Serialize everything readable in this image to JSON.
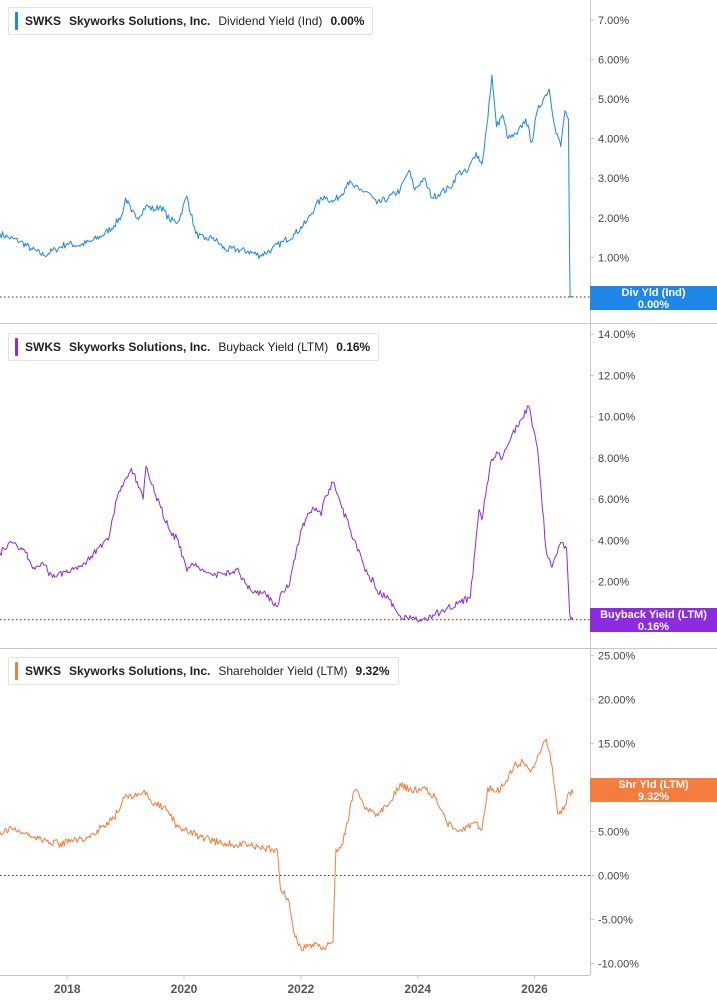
{
  "chart_data": [
    {
      "type": "line",
      "ticker": "SWKS",
      "company": "Skyworks Solutions, Inc.",
      "metric": "Dividend Yield (Ind)",
      "current_value": "0.00%",
      "tag_title": "Div Yld (Ind)",
      "tag_value": "0.00%",
      "color": "#1f87e8",
      "ylim": [
        0,
        7.5
      ],
      "y_ticks": [
        0,
        1,
        2,
        3,
        4,
        5,
        6,
        7
      ],
      "y_tick_labels": [
        "0.00%",
        "1.00%",
        "2.00%",
        "3.00%",
        "4.00%",
        "5.00%",
        "6.00%",
        "7.00%"
      ],
      "reference_line": 0,
      "x": [
        2016.85,
        2017.0,
        2017.2,
        2017.4,
        2017.6,
        2017.8,
        2018.0,
        2018.2,
        2018.4,
        2018.6,
        2018.8,
        2018.95,
        2019.0,
        2019.1,
        2019.2,
        2019.35,
        2019.5,
        2019.6,
        2019.75,
        2019.9,
        2020.05,
        2020.2,
        2020.35,
        2020.5,
        2020.7,
        2020.9,
        2021.1,
        2021.3,
        2021.5,
        2021.7,
        2021.9,
        2022.1,
        2022.25,
        2022.4,
        2022.55,
        2022.7,
        2022.8,
        2022.9,
        2023.0,
        2023.15,
        2023.3,
        2023.5,
        2023.7,
        2023.85,
        2023.95,
        2024.1,
        2024.25,
        2024.4,
        2024.55,
        2024.7,
        2024.85,
        2025.0,
        2025.1,
        2025.2,
        2025.27,
        2025.35,
        2025.45,
        2025.55,
        2025.7,
        2025.85,
        2025.95,
        2026.05,
        2026.15,
        2026.25,
        2026.35,
        2026.45,
        2026.52,
        2026.58,
        2026.6,
        2026.61,
        2026.66
      ],
      "values": [
        1.6,
        1.5,
        1.4,
        1.2,
        1.05,
        1.2,
        1.35,
        1.3,
        1.4,
        1.55,
        1.8,
        2.1,
        2.5,
        2.15,
        2.0,
        2.3,
        2.2,
        2.3,
        1.95,
        1.9,
        2.55,
        1.6,
        1.45,
        1.5,
        1.2,
        1.2,
        1.15,
        1.05,
        1.2,
        1.4,
        1.6,
        1.9,
        2.3,
        2.55,
        2.4,
        2.6,
        2.9,
        2.8,
        2.7,
        2.65,
        2.35,
        2.5,
        2.7,
        3.2,
        2.7,
        3.0,
        2.5,
        2.65,
        2.75,
        3.15,
        3.15,
        3.65,
        3.35,
        4.5,
        5.6,
        4.3,
        4.6,
        4.0,
        4.1,
        4.5,
        3.9,
        4.7,
        5.0,
        5.25,
        4.3,
        3.8,
        4.7,
        4.5,
        1.0,
        0.0,
        0.0
      ]
    },
    {
      "type": "line",
      "ticker": "SWKS",
      "company": "Skyworks Solutions, Inc.",
      "metric": "Buyback Yield (LTM)",
      "current_value": "0.16%",
      "tag_title": "Buyback Yield (LTM)",
      "tag_value": "0.16%",
      "color": "#8c2be2",
      "ylim": [
        0,
        14.3
      ],
      "y_ticks": [
        2,
        4,
        6,
        8,
        10,
        12,
        14
      ],
      "y_tick_labels": [
        "2.00%",
        "4.00%",
        "6.00%",
        "8.00%",
        "10.00%",
        "12.00%",
        "14.00%"
      ],
      "reference_line": 0.16,
      "x": [
        2016.85,
        2017.05,
        2017.25,
        2017.45,
        2017.6,
        2017.75,
        2017.95,
        2018.15,
        2018.3,
        2018.45,
        2018.55,
        2018.7,
        2018.85,
        2018.95,
        2019.1,
        2019.3,
        2019.35,
        2019.45,
        2019.6,
        2019.75,
        2019.9,
        2020.05,
        2020.2,
        2020.3,
        2020.5,
        2020.7,
        2020.9,
        2021.05,
        2021.2,
        2021.4,
        2021.6,
        2021.65,
        2021.8,
        2022.0,
        2022.2,
        2022.35,
        2022.4,
        2022.55,
        2022.7,
        2022.85,
        2022.95,
        2023.1,
        2023.25,
        2023.3,
        2023.5,
        2023.7,
        2023.85,
        2023.95,
        2024.1,
        2024.3,
        2024.5,
        2024.7,
        2024.9,
        2025.05,
        2025.1,
        2025.25,
        2025.35,
        2025.45,
        2025.6,
        2025.75,
        2025.9,
        2026.05,
        2026.2,
        2026.3,
        2026.35,
        2026.45,
        2026.55,
        2026.6,
        2026.62,
        2026.66
      ],
      "values": [
        3.4,
        3.9,
        3.6,
        2.6,
        2.8,
        2.2,
        2.5,
        2.7,
        2.9,
        3.4,
        3.7,
        4.0,
        6.0,
        6.6,
        7.5,
        6.0,
        7.6,
        6.7,
        5.6,
        4.5,
        4.0,
        2.5,
        2.9,
        2.6,
        2.3,
        2.4,
        2.6,
        1.9,
        1.5,
        1.4,
        0.8,
        1.4,
        1.8,
        4.5,
        5.6,
        5.2,
        6.0,
        6.8,
        5.6,
        4.5,
        3.8,
        2.5,
        2.0,
        1.6,
        1.2,
        0.35,
        0.2,
        0.16,
        0.2,
        0.4,
        0.7,
        1.0,
        1.2,
        5.5,
        5.0,
        7.8,
        8.3,
        8.0,
        9.0,
        9.8,
        10.5,
        8.5,
        3.5,
        2.7,
        3.2,
        3.9,
        3.6,
        0.5,
        0.16,
        0.16
      ]
    },
    {
      "type": "line",
      "ticker": "SWKS",
      "company": "Skyworks Solutions, Inc.",
      "metric": "Shareholder Yield (LTM)",
      "current_value": "9.32%",
      "tag_title": "Shr Yld (LTM)",
      "tag_value": "9.32%",
      "color": "#f47c3c",
      "ylim": [
        -10.5,
        25.5
      ],
      "y_ticks": [
        -10,
        -5,
        0,
        5,
        10,
        15,
        20,
        25
      ],
      "y_tick_labels": [
        "-10.00%",
        "-5.00%",
        "0.00%",
        "5.00%",
        "10.00%",
        "15.00%",
        "20.00%",
        "25.00%"
      ],
      "reference_line": 0,
      "x": [
        2016.85,
        2017.05,
        2017.25,
        2017.45,
        2017.65,
        2017.85,
        2018.05,
        2018.25,
        2018.45,
        2018.6,
        2018.8,
        2019.0,
        2019.15,
        2019.3,
        2019.5,
        2019.7,
        2019.9,
        2020.1,
        2020.3,
        2020.5,
        2020.7,
        2020.9,
        2021.1,
        2021.3,
        2021.5,
        2021.6,
        2021.65,
        2021.8,
        2021.9,
        2022.0,
        2022.2,
        2022.4,
        2022.55,
        2022.6,
        2022.7,
        2022.8,
        2022.9,
        2022.95,
        2023.1,
        2023.3,
        2023.5,
        2023.7,
        2023.9,
        2024.1,
        2024.3,
        2024.5,
        2024.7,
        2024.85,
        2025.0,
        2025.1,
        2025.2,
        2025.35,
        2025.5,
        2025.65,
        2025.8,
        2025.95,
        2026.1,
        2026.2,
        2026.3,
        2026.4,
        2026.5,
        2026.6,
        2026.66
      ],
      "values": [
        5.0,
        5.3,
        4.8,
        4.4,
        3.9,
        3.6,
        3.8,
        4.2,
        4.8,
        5.6,
        6.5,
        9.2,
        9.0,
        9.5,
        8.2,
        7.4,
        5.5,
        4.9,
        4.4,
        3.9,
        3.7,
        3.5,
        3.5,
        3.1,
        3.0,
        2.8,
        -1.5,
        -3.0,
        -7.0,
        -8.2,
        -7.8,
        -8.3,
        -7.5,
        3.0,
        3.5,
        6.0,
        9.5,
        9.8,
        7.5,
        7.0,
        8.0,
        10.5,
        9.5,
        10.0,
        8.8,
        6.0,
        5.0,
        5.5,
        6.0,
        5.2,
        10.0,
        9.5,
        10.5,
        12.5,
        13.0,
        12.0,
        14.0,
        15.5,
        12.5,
        7.0,
        7.5,
        9.5,
        9.32
      ]
    }
  ],
  "x_axis": {
    "ticks": [
      2018,
      2020,
      2022,
      2024,
      2026
    ],
    "tick_labels": [
      "2018",
      "2020",
      "2022",
      "2024",
      "2026"
    ],
    "range": [
      2016.85,
      2026.95
    ]
  }
}
